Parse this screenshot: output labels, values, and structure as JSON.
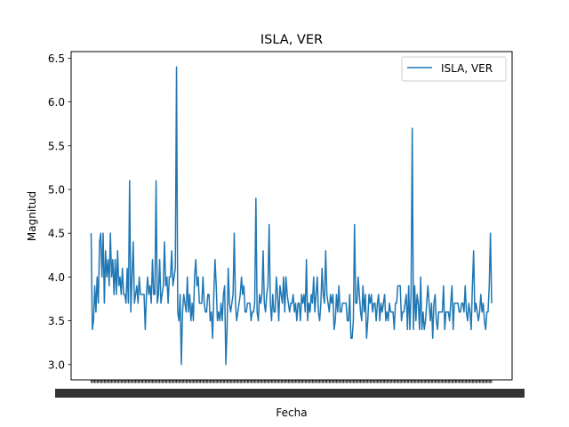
{
  "chart_data": {
    "type": "line",
    "title": "ISLA, VER",
    "xlabel": "Fecha",
    "ylabel": "Magnitud",
    "ylim": [
      2.825,
      6.575
    ],
    "yticks": [
      3.0,
      3.5,
      4.0,
      4.5,
      5.0,
      5.5,
      6.0,
      6.5
    ],
    "ytick_labels": [
      "3.0",
      "3.5",
      "4.0",
      "4.5",
      "5.0",
      "5.5",
      "6.0",
      "6.5"
    ],
    "grid": false,
    "legend_placement": "top-right",
    "series_color": "#1f77b4",
    "series": [
      {
        "name": "ISLA, VER",
        "values": [
          4.5,
          3.4,
          3.5,
          3.9,
          3.6,
          4.0,
          3.7,
          4.4,
          4.5,
          4.0,
          4.5,
          3.7,
          4.3,
          4.0,
          4.2,
          3.9,
          4.5,
          4.0,
          4.2,
          3.8,
          4.2,
          3.8,
          4.3,
          3.9,
          4.0,
          3.8,
          4.1,
          3.8,
          3.8,
          3.7,
          4.1,
          3.7,
          5.1,
          3.6,
          4.0,
          4.4,
          3.7,
          3.8,
          3.9,
          3.7,
          4.0,
          3.8,
          3.8,
          3.8,
          3.8,
          3.4,
          3.8,
          4.0,
          3.8,
          3.9,
          3.7,
          4.2,
          3.8,
          3.8,
          5.1,
          3.7,
          3.8,
          4.2,
          3.7,
          3.8,
          3.9,
          4.4,
          3.9,
          4.0,
          3.7,
          4.0,
          4.0,
          4.3,
          3.9,
          4.0,
          4.1,
          6.4,
          3.6,
          3.5,
          3.8,
          3.0,
          3.6,
          3.8,
          3.7,
          3.6,
          4.0,
          3.6,
          3.8,
          3.5,
          3.7,
          3.5,
          4.0,
          4.2,
          3.9,
          4.0,
          3.7,
          3.7,
          3.7,
          4.0,
          3.7,
          3.6,
          3.6,
          3.8,
          3.8,
          3.5,
          3.6,
          3.3,
          3.8,
          4.2,
          3.9,
          3.5,
          3.6,
          3.5,
          3.7,
          3.5,
          3.8,
          3.9,
          3.0,
          3.4,
          4.1,
          3.7,
          3.6,
          3.7,
          3.8,
          4.5,
          3.7,
          3.5,
          3.6,
          3.7,
          3.8,
          4.0,
          3.8,
          3.9,
          3.6,
          3.6,
          3.7,
          3.7,
          3.7,
          3.5,
          3.6,
          3.6,
          3.7,
          4.9,
          3.6,
          3.5,
          3.8,
          3.7,
          3.8,
          4.3,
          3.7,
          3.6,
          3.8,
          3.9,
          4.6,
          3.7,
          3.5,
          3.8,
          3.6,
          3.6,
          4.0,
          3.8,
          3.5,
          3.9,
          3.8,
          3.7,
          4.0,
          3.6,
          4.0,
          3.8,
          3.7,
          3.6,
          3.7,
          3.7,
          3.8,
          3.6,
          3.7,
          3.5,
          3.7,
          3.7,
          3.5,
          3.8,
          3.7,
          3.8,
          3.6,
          4.2,
          3.5,
          3.7,
          3.6,
          3.8,
          3.7,
          4.0,
          3.6,
          3.8,
          4.0,
          3.6,
          3.5,
          3.7,
          4.1,
          3.8,
          3.7,
          4.3,
          3.8,
          3.7,
          3.6,
          3.8,
          3.7,
          3.8,
          3.4,
          3.5,
          3.8,
          3.6,
          3.9,
          3.6,
          3.6,
          3.7,
          3.7,
          3.7,
          3.7,
          3.5,
          3.5,
          3.8,
          3.3,
          3.3,
          3.5,
          4.6,
          3.7,
          3.7,
          4.0,
          3.8,
          3.6,
          3.5,
          3.9,
          3.6,
          3.8,
          3.3,
          3.5,
          3.8,
          3.7,
          3.8,
          3.6,
          3.7,
          3.7,
          3.5,
          3.7,
          3.8,
          3.5,
          3.7,
          3.6,
          3.7,
          3.8,
          3.5,
          3.6,
          3.5,
          3.7,
          3.6,
          3.6,
          3.6,
          3.4,
          3.7,
          3.7,
          3.9,
          3.9,
          3.9,
          3.5,
          3.6,
          3.6,
          3.7,
          3.8,
          3.4,
          3.9,
          3.4,
          3.8,
          5.7,
          3.4,
          3.9,
          3.5,
          3.8,
          3.7,
          3.4,
          4.0,
          3.4,
          3.6,
          3.4,
          3.5,
          3.7,
          3.9,
          3.7,
          3.5,
          3.7,
          3.3,
          3.7,
          3.8,
          3.5,
          3.4,
          3.6,
          3.6,
          3.6,
          3.6,
          3.9,
          3.4,
          3.6,
          3.6,
          3.6,
          3.5,
          3.7,
          3.9,
          3.4,
          3.7,
          3.7,
          3.7,
          3.7,
          3.6,
          3.6,
          3.7,
          3.7,
          3.6,
          3.9,
          3.6,
          3.5,
          3.7,
          3.6,
          3.4,
          3.9,
          4.3,
          3.6,
          3.7,
          3.6,
          3.5,
          3.6,
          3.8,
          3.6,
          3.7,
          3.5,
          3.4,
          3.6,
          3.6,
          3.9,
          4.5,
          3.7
        ]
      }
    ]
  }
}
